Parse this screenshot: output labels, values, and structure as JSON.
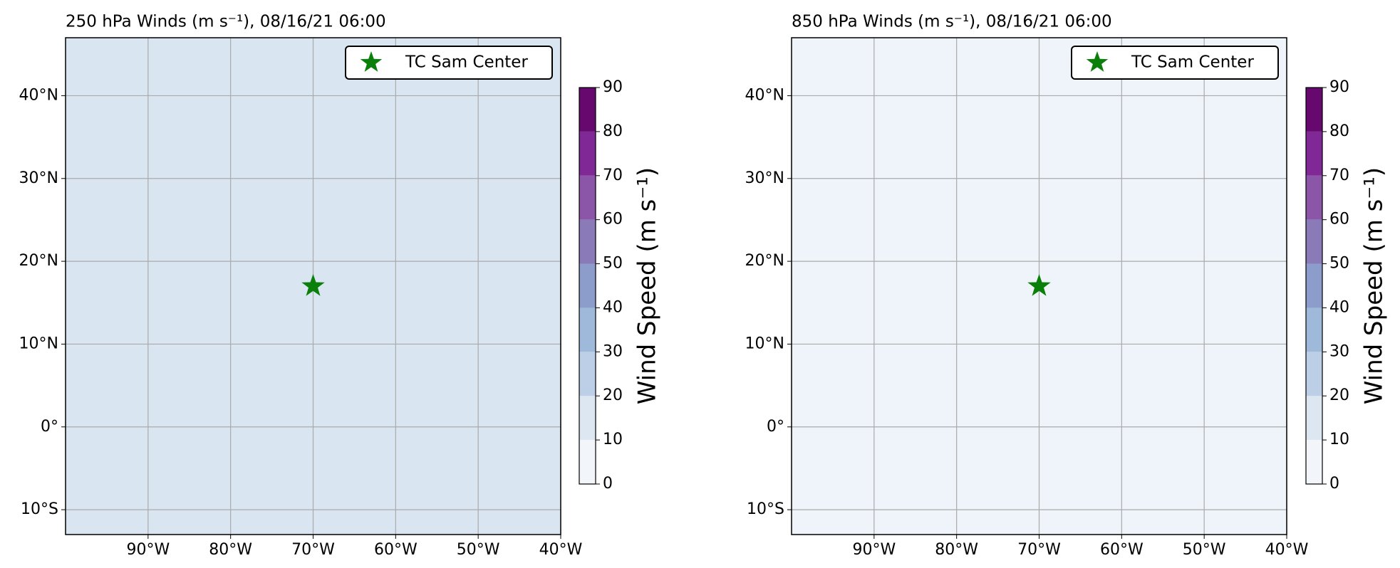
{
  "chart_data": [
    {
      "type": "map",
      "title": "250 hPa Winds (m s⁻¹), 08/16/21 06:00",
      "xlim": [
        -100,
        -40
      ],
      "ylim": [
        -13,
        47
      ],
      "xticks": [
        {
          "value": -90,
          "label": "90°W"
        },
        {
          "value": -80,
          "label": "80°W"
        },
        {
          "value": -70,
          "label": "70°W"
        },
        {
          "value": -60,
          "label": "60°W"
        },
        {
          "value": -50,
          "label": "50°W"
        },
        {
          "value": -40,
          "label": "40°W"
        }
      ],
      "yticks": [
        {
          "value": -10,
          "label": "10°S"
        },
        {
          "value": 0,
          "label": "0°"
        },
        {
          "value": 10,
          "label": "10°N"
        },
        {
          "value": 20,
          "label": "20°N"
        },
        {
          "value": 30,
          "label": "30°N"
        },
        {
          "value": 40,
          "label": "40°N"
        }
      ],
      "grid": true,
      "background": "#d9e5f1",
      "legend": "upper right",
      "series": [
        {
          "name": "TC Sam Center",
          "color": "#0a800a",
          "x": [
            -70
          ],
          "y": [
            17
          ]
        }
      ],
      "colorbar": {
        "label": "Wind Speed (m s⁻¹)",
        "levels": [
          0,
          10,
          20,
          30,
          40,
          50,
          60,
          70,
          80,
          90
        ],
        "colors": [
          "#f2f6fa",
          "#dde7f2",
          "#bccfe6",
          "#9fb9da",
          "#8c9ccb",
          "#8a7ab8",
          "#8b55a8",
          "#7f2896",
          "#66086e"
        ]
      }
    },
    {
      "type": "map",
      "title": "850 hPa Winds (m s⁻¹), 08/16/21 06:00",
      "xlim": [
        -100,
        -40
      ],
      "ylim": [
        -13,
        47
      ],
      "xticks": [
        {
          "value": -90,
          "label": "90°W"
        },
        {
          "value": -80,
          "label": "80°W"
        },
        {
          "value": -70,
          "label": "70°W"
        },
        {
          "value": -60,
          "label": "60°W"
        },
        {
          "value": -50,
          "label": "50°W"
        },
        {
          "value": -40,
          "label": "40°W"
        }
      ],
      "yticks": [
        {
          "value": -10,
          "label": "10°S"
        },
        {
          "value": 0,
          "label": "0°"
        },
        {
          "value": 10,
          "label": "10°N"
        },
        {
          "value": 20,
          "label": "20°N"
        },
        {
          "value": 30,
          "label": "30°N"
        },
        {
          "value": 40,
          "label": "40°N"
        }
      ],
      "grid": true,
      "background": "#eef4f9",
      "legend": "upper right",
      "series": [
        {
          "name": "TC Sam Center",
          "color": "#0a800a",
          "x": [
            -70
          ],
          "y": [
            17
          ]
        }
      ],
      "colorbar": {
        "label": "Wind Speed (m s⁻¹)",
        "levels": [
          0,
          10,
          20,
          30,
          40,
          50,
          60,
          70,
          80,
          90
        ],
        "colors": [
          "#f2f6fa",
          "#dde7f2",
          "#bccfe6",
          "#9fb9da",
          "#8c9ccb",
          "#8a7ab8",
          "#8b55a8",
          "#7f2896",
          "#66086e"
        ]
      }
    }
  ]
}
